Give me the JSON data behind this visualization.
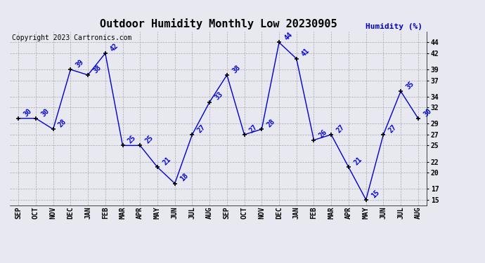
{
  "title": "Outdoor Humidity Monthly Low 20230905",
  "ylabel": "Humidity (%)",
  "copyright": "Copyright 2023 Cartronics.com",
  "categories": [
    "SEP",
    "OCT",
    "NOV",
    "DEC",
    "JAN",
    "FEB",
    "MAR",
    "APR",
    "MAY",
    "JUN",
    "JUL",
    "AUG",
    "SEP",
    "OCT",
    "NOV",
    "DEC",
    "JAN",
    "FEB",
    "MAR",
    "APR",
    "MAY",
    "JUN",
    "JUL",
    "AUG"
  ],
  "values": [
    30,
    30,
    28,
    39,
    38,
    42,
    25,
    25,
    21,
    18,
    27,
    33,
    38,
    27,
    28,
    44,
    41,
    26,
    27,
    21,
    15,
    27,
    35,
    30
  ],
  "line_color": "#0000cc",
  "marker_color": "#000000",
  "label_color": "#0000cc",
  "title_color": "#000000",
  "ylabel_color": "#0000cc",
  "background_color": "#e8e8f0",
  "plot_bg_color": "#e8e8f0",
  "grid_color": "#aaaaaa",
  "ylim": [
    14,
    46
  ],
  "yticks": [
    15,
    17,
    20,
    22,
    25,
    27,
    29,
    32,
    34,
    37,
    39,
    42,
    44
  ],
  "title_fontsize": 11,
  "label_fontsize": 7,
  "tick_fontsize": 7,
  "ylabel_fontsize": 8,
  "copyright_fontsize": 7
}
